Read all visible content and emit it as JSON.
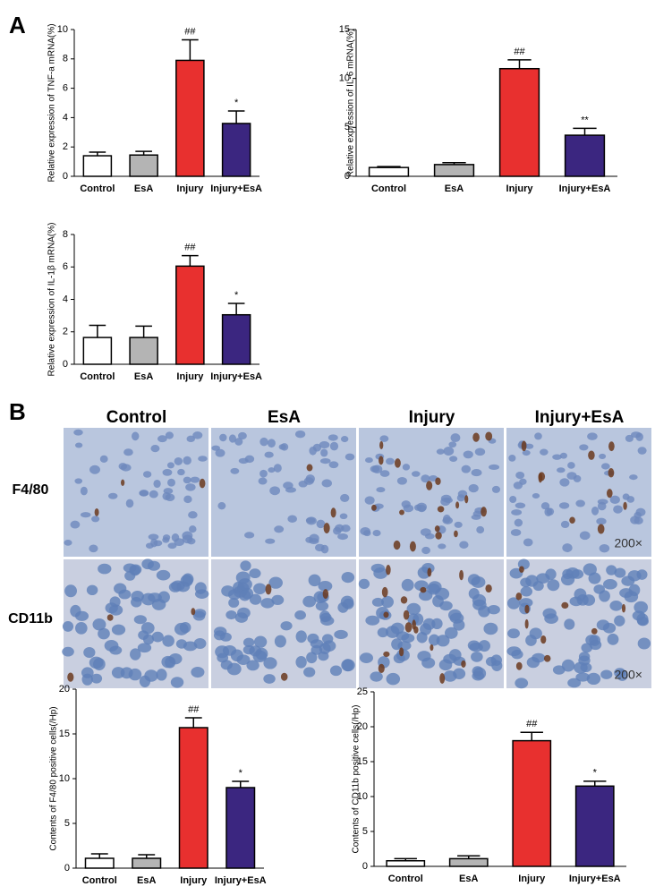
{
  "panels": [
    "A",
    "B"
  ],
  "micrograph": {
    "columns": [
      "Control",
      "EsA",
      "Injury",
      "Injury+EsA"
    ],
    "rows": [
      "F4/80",
      "CD11b"
    ],
    "magnification": [
      "200×",
      "200×"
    ]
  },
  "chart_data": [
    {
      "type": "bar",
      "ylabel": "Relative expression of TNF-a mRNA(%)",
      "categories": [
        "Control",
        "EsA",
        "Injury",
        "Injury+EsA"
      ],
      "values": [
        1.4,
        1.45,
        7.9,
        3.6
      ],
      "errors": [
        0.25,
        0.25,
        1.4,
        0.85
      ],
      "significance": [
        null,
        null,
        "##",
        "*"
      ],
      "colors": [
        "#ffffff",
        "#b4b4b4",
        "#e8302f",
        "#3b2680"
      ],
      "ylim": [
        0,
        10
      ],
      "yticks": [
        0,
        2,
        4,
        6,
        8,
        10
      ]
    },
    {
      "type": "bar",
      "ylabel": "Relative expression of IL-6 mRNA(%)",
      "categories": [
        "Control",
        "EsA",
        "Injury",
        "Injury+EsA"
      ],
      "values": [
        0.9,
        1.2,
        11,
        4.2
      ],
      "errors": [
        0.1,
        0.2,
        0.9,
        0.7
      ],
      "significance": [
        null,
        null,
        "##",
        "**"
      ],
      "colors": [
        "#ffffff",
        "#b4b4b4",
        "#e8302f",
        "#3b2680"
      ],
      "ylim": [
        0,
        15
      ],
      "yticks": [
        0,
        5,
        10,
        15
      ]
    },
    {
      "type": "bar",
      "ylabel": "Relative expression of IL-1β mRNA(%)",
      "categories": [
        "Control",
        "EsA",
        "Injury",
        "Injury+EsA"
      ],
      "values": [
        1.65,
        1.65,
        6.05,
        3.05
      ],
      "errors": [
        0.75,
        0.7,
        0.65,
        0.7
      ],
      "significance": [
        null,
        null,
        "##",
        "*"
      ],
      "colors": [
        "#ffffff",
        "#b4b4b4",
        "#e8302f",
        "#3b2680"
      ],
      "ylim": [
        0,
        8
      ],
      "yticks": [
        0,
        2,
        4,
        6,
        8
      ]
    },
    {
      "type": "bar",
      "ylabel": "Contents of F4/80 positive cells(/Hp)",
      "categories": [
        "Control",
        "EsA",
        "Injury",
        "Injury+EsA"
      ],
      "values": [
        1.1,
        1.1,
        15.7,
        9.0
      ],
      "errors": [
        0.5,
        0.4,
        1.1,
        0.7
      ],
      "significance": [
        null,
        null,
        "##",
        "*"
      ],
      "colors": [
        "#ffffff",
        "#b4b4b4",
        "#e8302f",
        "#3b2680"
      ],
      "ylim": [
        0,
        20
      ],
      "yticks": [
        0,
        5,
        10,
        15,
        20
      ]
    },
    {
      "type": "bar",
      "ylabel": "Contents of CD11b positive cells(/Hp)",
      "categories": [
        "Control",
        "EsA",
        "Injury",
        "Injury+EsA"
      ],
      "values": [
        0.8,
        1.1,
        18,
        11.5
      ],
      "errors": [
        0.3,
        0.4,
        1.2,
        0.7
      ],
      "significance": [
        null,
        null,
        "##",
        "*"
      ],
      "colors": [
        "#ffffff",
        "#b4b4b4",
        "#e8302f",
        "#3b2680"
      ],
      "ylim": [
        0,
        25
      ],
      "yticks": [
        0,
        5,
        10,
        15,
        20,
        25
      ]
    }
  ]
}
